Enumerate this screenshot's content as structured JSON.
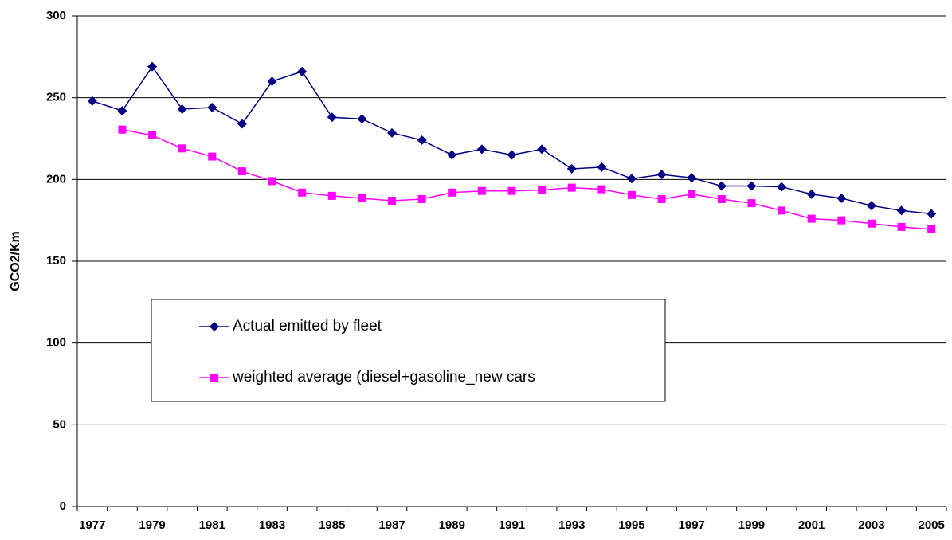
{
  "chart_data": {
    "type": "line",
    "y_label": "GCO2/Km",
    "categories": [
      "1977",
      null,
      "1979",
      null,
      "1981",
      null,
      "1983",
      null,
      "1985",
      null,
      "1987",
      null,
      "1989",
      null,
      "1991",
      null,
      "1993",
      null,
      "1995",
      null,
      "1997",
      null,
      "1999",
      null,
      "2001",
      null,
      "2003",
      null,
      "2005"
    ],
    "series": [
      {
        "name": "Actual emitted by fleet",
        "color": "#000080",
        "marker": "diamond",
        "values": [
          248,
          242,
          269,
          243,
          244,
          234,
          260,
          266,
          238,
          237,
          228.5,
          224,
          215,
          218.5,
          215,
          218.5,
          206.5,
          207.5,
          200.5,
          203,
          201,
          196,
          196,
          195.5,
          191,
          188.5,
          184,
          181,
          179
        ]
      },
      {
        "name": "weighted average (diesel+gasoline_new cars",
        "color": "#ff00ff",
        "marker": "square",
        "values": [
          null,
          230.5,
          227,
          219,
          214,
          205,
          199,
          192,
          190,
          188.5,
          187,
          188,
          192,
          193,
          193,
          193.5,
          195,
          194,
          190.5,
          188,
          191,
          188,
          185.5,
          181,
          176,
          175,
          173,
          171,
          169.5
        ]
      }
    ],
    "ylim": [
      0,
      300
    ],
    "yticks": [
      0,
      50,
      100,
      150,
      200,
      250,
      300
    ],
    "grid": true
  }
}
